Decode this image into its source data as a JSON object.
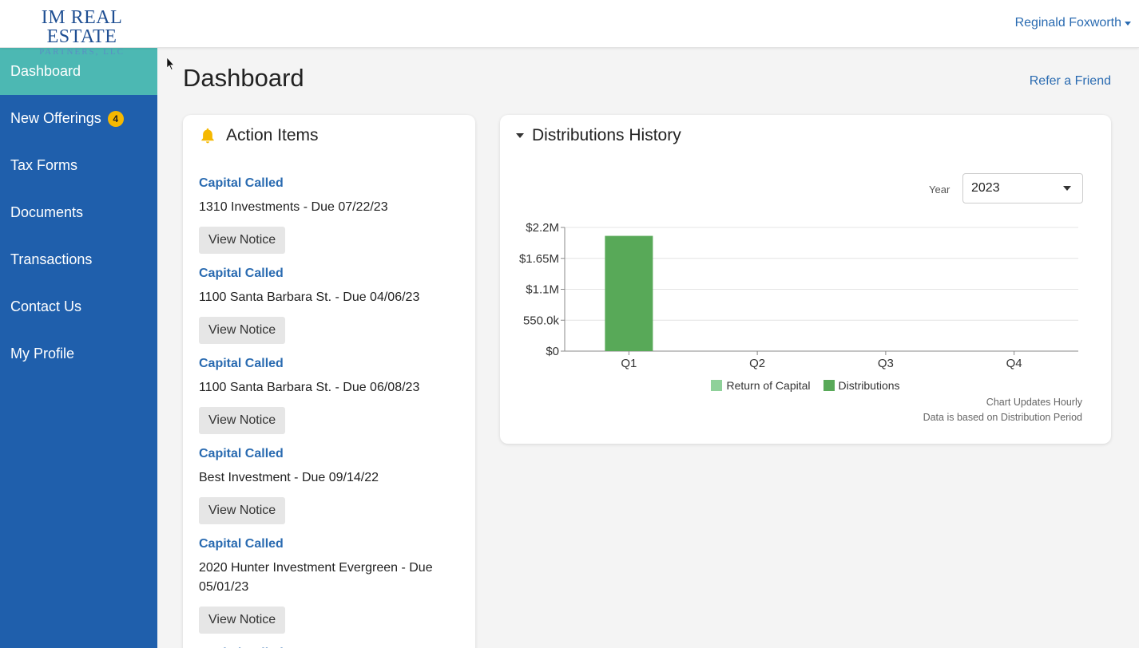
{
  "header": {
    "logo_main": "IM REAL ESTATE",
    "logo_sub": "PARTNERS, LLC",
    "user_name": "Reginald Foxworth"
  },
  "sidebar": {
    "items": [
      {
        "label": "Dashboard",
        "active": true
      },
      {
        "label": "New Offerings",
        "badge": "4"
      },
      {
        "label": "Tax Forms"
      },
      {
        "label": "Documents"
      },
      {
        "label": "Transactions"
      },
      {
        "label": "Contact Us"
      },
      {
        "label": "My Profile"
      }
    ]
  },
  "main": {
    "title": "Dashboard",
    "refer_link": "Refer a Friend"
  },
  "action_items": {
    "title": "Action Items",
    "items": [
      {
        "type": "Capital Called",
        "desc": "1310 Investments - Due 07/22/23",
        "button": "View Notice"
      },
      {
        "type": "Capital Called",
        "desc": "1100 Santa Barbara St. - Due 04/06/23",
        "button": "View Notice"
      },
      {
        "type": "Capital Called",
        "desc": "1100 Santa Barbara St. - Due 06/08/23",
        "button": "View Notice"
      },
      {
        "type": "Capital Called",
        "desc": "Best Investment - Due 09/14/22",
        "button": "View Notice"
      },
      {
        "type": "Capital Called",
        "desc": "2020 Hunter Investment Evergreen - Due 05/01/23",
        "button": "View Notice"
      },
      {
        "type": "Capital Called",
        "desc": "",
        "button": ""
      }
    ]
  },
  "distributions": {
    "title": "Distributions History",
    "year_label": "Year",
    "year_value": "2023",
    "note_1": "Chart Updates Hourly",
    "note_2": "Data is based on Distribution Period"
  },
  "colors": {
    "sidebar_bg": "#1f5fac",
    "sidebar_active": "#4cb8b3",
    "badge": "#f5b800",
    "link": "#2a6bb1",
    "return_of_capital": "#8fd19a",
    "distributions": "#58a958"
  },
  "chart_data": {
    "type": "bar",
    "categories": [
      "Q1",
      "Q2",
      "Q3",
      "Q4"
    ],
    "series": [
      {
        "name": "Return of Capital",
        "values": [
          0,
          0,
          0,
          0
        ],
        "color": "#8fd19a"
      },
      {
        "name": "Distributions",
        "values": [
          2050000,
          0,
          0,
          0
        ],
        "color": "#58a958"
      }
    ],
    "yticks": [
      0,
      550000,
      1100000,
      1650000,
      2200000
    ],
    "ytick_labels": [
      "$0",
      "550.0k",
      "$1.1M",
      "$1.65M",
      "$2.2M"
    ],
    "ylim": [
      0,
      2200000
    ],
    "stacked": true,
    "grid": true,
    "legend": "bottom-center"
  }
}
